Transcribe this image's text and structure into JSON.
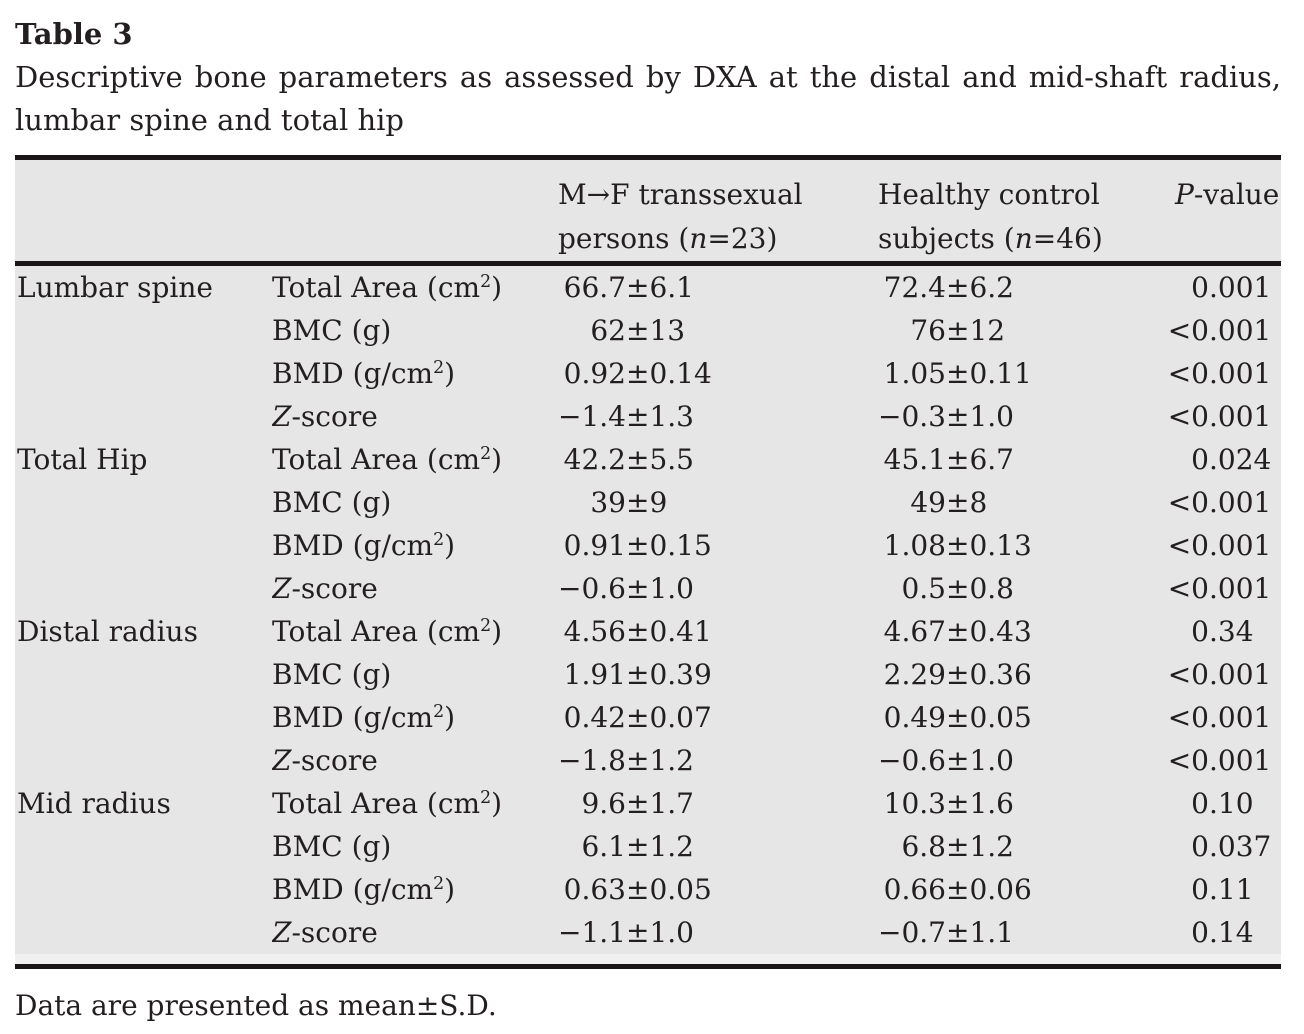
{
  "page": {
    "background_color": "#ffffff",
    "text_color": "#231f20",
    "table_background_color": "#e6e6e6",
    "rule_color": "#1a1617"
  },
  "table": {
    "label": "Table 3",
    "caption": "Descriptive bone parameters as assessed by DXA at the distal and mid-shaft radius, lumbar spine and total hip",
    "columns": {
      "transsexual": {
        "line1": "M→F transsexual",
        "line2_pre": "persons (",
        "n_symbol": "n",
        "line2_post": "=23)"
      },
      "control": {
        "line1": "Healthy control",
        "line2_pre": "subjects (",
        "n_symbol": "n",
        "line2_post": "=46)"
      },
      "pvalue": {
        "symbol": "P",
        "suffix": "-value"
      }
    },
    "rows": [
      {
        "site": "Lumbar spine",
        "param": [
          {
            "t": "Total Area (cm"
          },
          {
            "s": "2"
          },
          {
            "t": ")"
          }
        ],
        "mf": "66.7±6.1",
        "hc": "72.4±6.2",
        "p": "0.001"
      },
      {
        "site": "",
        "param": [
          {
            "t": "BMC (g)"
          }
        ],
        "mf": "62±13",
        "hc": "76±12",
        "p": "<0.001"
      },
      {
        "site": "",
        "param": [
          {
            "t": "BMD (g/cm"
          },
          {
            "s": "2"
          },
          {
            "t": ")"
          }
        ],
        "mf": "0.92±0.14",
        "hc": "1.05±0.11",
        "p": "<0.001"
      },
      {
        "site": "",
        "param": [
          {
            "i": "Z"
          },
          {
            "t": "-score"
          }
        ],
        "mf": "−1.4±1.3",
        "hc": "−0.3±1.0",
        "p": "<0.001"
      },
      {
        "site": "Total Hip",
        "param": [
          {
            "t": "Total Area (cm"
          },
          {
            "s": "2"
          },
          {
            "t": ")"
          }
        ],
        "mf": "42.2±5.5",
        "hc": "45.1±6.7",
        "p": "0.024"
      },
      {
        "site": "",
        "param": [
          {
            "t": "BMC (g)"
          }
        ],
        "mf": "39±9",
        "hc": "49±8",
        "p": "<0.001"
      },
      {
        "site": "",
        "param": [
          {
            "t": "BMD (g/cm"
          },
          {
            "s": "2"
          },
          {
            "t": ")"
          }
        ],
        "mf": "0.91±0.15",
        "hc": "1.08±0.13",
        "p": "<0.001"
      },
      {
        "site": "",
        "param": [
          {
            "i": "Z"
          },
          {
            "t": "-score"
          }
        ],
        "mf": "−0.6±1.0",
        "hc": "0.5±0.8",
        "p": "<0.001"
      },
      {
        "site": "Distal radius",
        "param": [
          {
            "t": "Total Area (cm"
          },
          {
            "s": "2"
          },
          {
            "t": ")"
          }
        ],
        "mf": "4.56±0.41",
        "hc": "4.67±0.43",
        "p": "0.34"
      },
      {
        "site": "",
        "param": [
          {
            "t": "BMC (g)"
          }
        ],
        "mf": "1.91±0.39",
        "hc": "2.29±0.36",
        "p": "<0.001"
      },
      {
        "site": "",
        "param": [
          {
            "t": "BMD (g/cm"
          },
          {
            "s": "2"
          },
          {
            "t": ")"
          }
        ],
        "mf": "0.42±0.07",
        "hc": "0.49±0.05",
        "p": "<0.001"
      },
      {
        "site": "",
        "param": [
          {
            "i": "Z"
          },
          {
            "t": "-score"
          }
        ],
        "mf": "−1.8±1.2",
        "hc": "−0.6±1.0",
        "p": "<0.001"
      },
      {
        "site": "Mid radius",
        "param": [
          {
            "t": "Total Area (cm"
          },
          {
            "s": "2"
          },
          {
            "t": ")"
          }
        ],
        "mf": "9.6±1.7",
        "hc": "10.3±1.6",
        "p": "0.10"
      },
      {
        "site": "",
        "param": [
          {
            "t": "BMC (g)"
          }
        ],
        "mf": "6.1±1.2",
        "hc": "6.8±1.2",
        "p": "0.037"
      },
      {
        "site": "",
        "param": [
          {
            "t": "BMD (g/cm"
          },
          {
            "s": "2"
          },
          {
            "t": ")"
          }
        ],
        "mf": "0.63±0.05",
        "hc": "0.66±0.06",
        "p": "0.11"
      },
      {
        "site": "",
        "param": [
          {
            "i": "Z"
          },
          {
            "t": "-score"
          }
        ],
        "mf": "−1.1±1.0",
        "hc": "−0.7±1.1",
        "p": "0.14"
      }
    ],
    "footnote": "Data are presented as mean±S.D."
  }
}
